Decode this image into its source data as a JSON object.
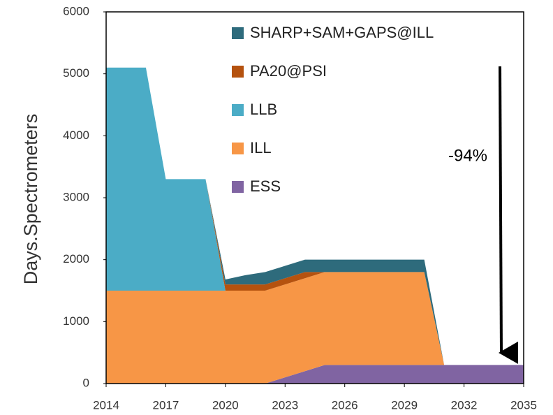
{
  "chart_data": {
    "type": "stacked_area",
    "ylabel": "Days.Spectrometers",
    "annotation": "-94%",
    "x": [
      2014,
      2015,
      2016,
      2017,
      2018,
      2019,
      2020,
      2021,
      2022,
      2023,
      2024,
      2025,
      2026,
      2027,
      2028,
      2029,
      2030,
      2031,
      2032,
      2033,
      2034,
      2035
    ],
    "series": [
      {
        "name": "ESS",
        "color": "#8064a2",
        "values": [
          0,
          0,
          0,
          0,
          0,
          0,
          0,
          0,
          0,
          100,
          200,
          300,
          300,
          300,
          300,
          300,
          300,
          300,
          300,
          300,
          300,
          300
        ]
      },
      {
        "name": "ILL",
        "color": "#f79646",
        "values": [
          1500,
          1500,
          1500,
          1500,
          1500,
          1500,
          1500,
          1500,
          1500,
          1500,
          1500,
          1500,
          1500,
          1500,
          1500,
          1500,
          1500,
          0,
          0,
          0,
          0,
          0
        ]
      },
      {
        "name": "LLB",
        "color": "#4bacc6",
        "values": [
          3600,
          3600,
          3600,
          1800,
          1800,
          1800,
          0,
          0,
          0,
          0,
          0,
          0,
          0,
          0,
          0,
          0,
          0,
          0,
          0,
          0,
          0,
          0
        ]
      },
      {
        "name": "PA20@PSI",
        "color": "#b5520f",
        "values": [
          0,
          0,
          0,
          0,
          0,
          0,
          100,
          100,
          100,
          100,
          100,
          0,
          0,
          0,
          0,
          0,
          0,
          0,
          0,
          0,
          0,
          0
        ]
      },
      {
        "name": "SHARP+SAM+GAPS@ILL",
        "color": "#2e6b7c",
        "values": [
          0,
          0,
          0,
          0,
          0,
          0,
          80,
          150,
          200,
          200,
          200,
          200,
          200,
          200,
          200,
          200,
          200,
          0,
          0,
          0,
          0,
          0
        ]
      }
    ],
    "xlim": [
      2014,
      2035
    ],
    "xticks": [
      2014,
      2017,
      2020,
      2023,
      2026,
      2029,
      2032,
      2035
    ],
    "ylim": [
      0,
      6000
    ],
    "yticks": [
      0,
      1000,
      2000,
      3000,
      4000,
      5000,
      6000
    ],
    "grid": false,
    "legend": "top-right"
  }
}
